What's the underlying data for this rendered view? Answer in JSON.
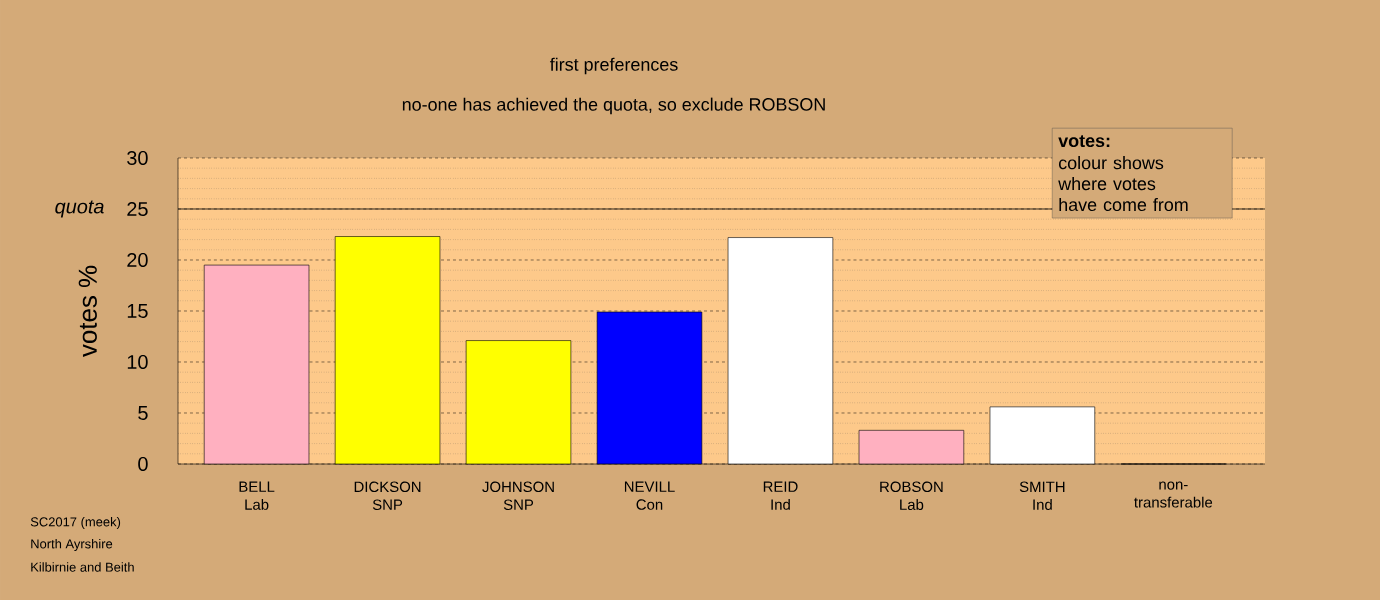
{
  "chart_data": {
    "type": "bar",
    "title": "first preferences",
    "subtitle": "no-one has achieved the quota, so exclude ROBSON",
    "ylabel": "votes %",
    "categories": [
      "BELL Lab",
      "DICKSON SNP",
      "JOHNSON SNP",
      "NEVILL Con",
      "REID Ind",
      "ROBSON Lab",
      "SMITH Ind",
      "non-transferable"
    ],
    "values": [
      19.5,
      22.3,
      12.1,
      14.9,
      22.2,
      3.3,
      5.6,
      0
    ],
    "colors": [
      "#ffb0c0",
      "#ffff00",
      "#ffff00",
      "#0000ff",
      "#ffffff",
      "#ffb0c0",
      "#ffffff",
      "#ffffff"
    ],
    "ylim": [
      0,
      30
    ],
    "yticks": [
      0,
      5,
      10,
      15,
      20,
      25,
      30
    ],
    "grid": "y",
    "ref_lines": [
      {
        "axis": "y",
        "value": 25,
        "label": "quota"
      }
    ],
    "annotations": [
      "votes:",
      "colour shows where votes have come from",
      "SC2017 (meek)",
      "North Ayrshire",
      "Kilbirnie and Beith"
    ]
  }
}
